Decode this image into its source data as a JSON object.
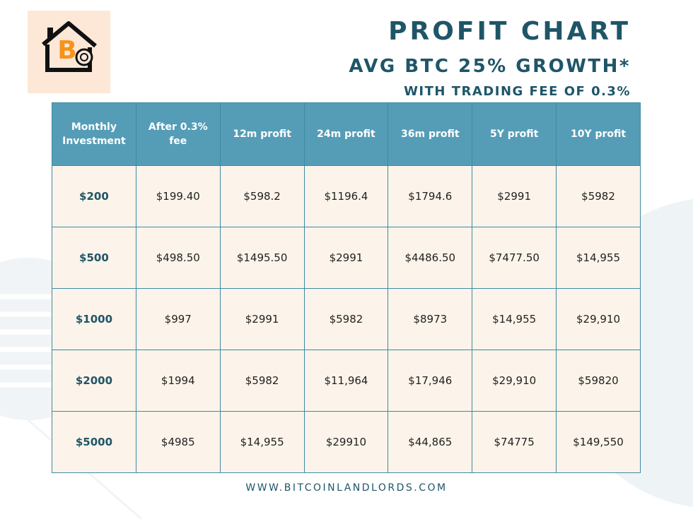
{
  "header": {
    "title": "PROFIT CHART",
    "subtitle": "AVG BTC 25% GROWTH*",
    "note": "WITH TRADING FEE OF 0.3%"
  },
  "logo": {
    "icon": "house-bitcoin-icon",
    "colors": {
      "house": "#111111",
      "coin": "#f7931a",
      "background": "#fde8d7"
    }
  },
  "table": {
    "columns": [
      "Monthly Investment",
      "After 0.3% fee",
      "12m profit",
      "24m profit",
      "36m profit",
      "5Y profit",
      "10Y profit"
    ],
    "rows": [
      [
        "$200",
        "$199.40",
        "$598.2",
        "$1196.4",
        "$1794.6",
        "$2991",
        "$5982"
      ],
      [
        "$500",
        "$498.50",
        "$1495.50",
        "$2991",
        "$4486.50",
        "$7477.50",
        "$14,955"
      ],
      [
        "$1000",
        "$997",
        "$2991",
        "$5982",
        "$8973",
        "$14,955",
        "$29,910"
      ],
      [
        "$2000",
        "$1994",
        "$5982",
        "$11,964",
        "$17,946",
        "$29,910",
        "$59820"
      ],
      [
        "$5000",
        "$4985",
        "$14,955",
        "$29910",
        "$44,865",
        "$74775",
        "$149,550"
      ]
    ]
  },
  "footer": {
    "url": "WWW.BITCOINLANDLORDS.COM"
  },
  "colors": {
    "header_bg": "#559db7",
    "cell_bg": "#fcf4ea",
    "accent_text": "#1f5568",
    "border": "#3d8aa2"
  }
}
